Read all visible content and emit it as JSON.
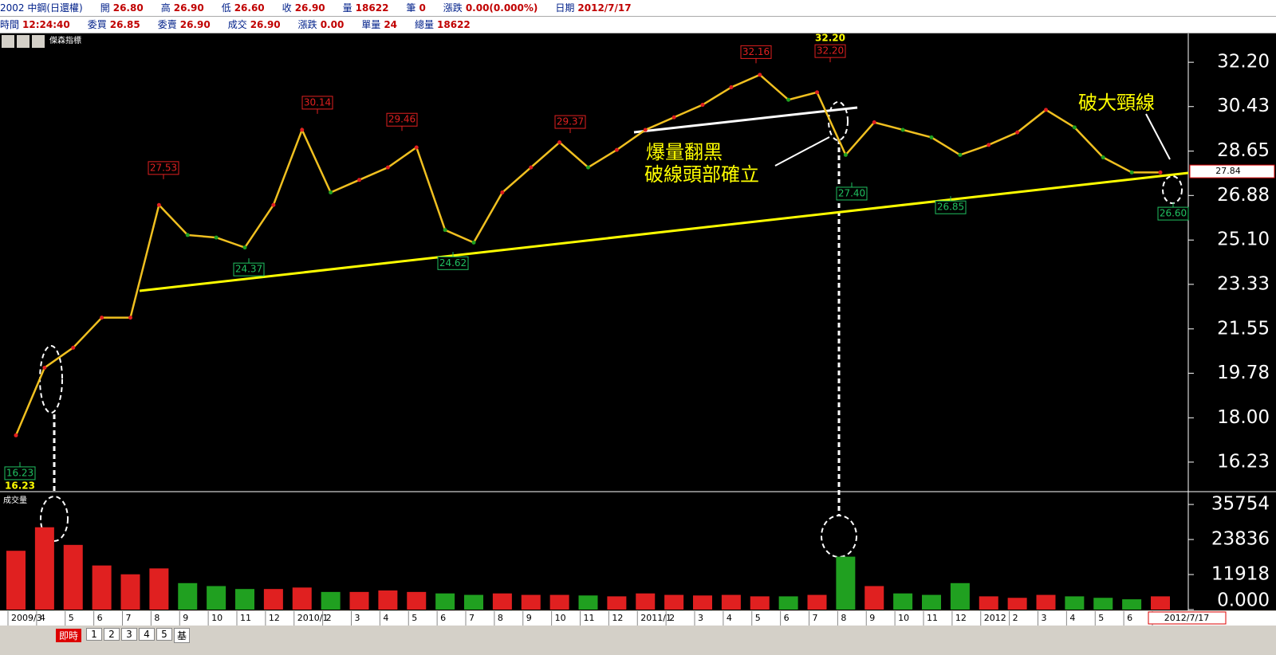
{
  "header": {
    "row1": [
      {
        "label": "2002 中鋼(日還權)",
        "value": ""
      },
      {
        "label": "開",
        "value": "26.80"
      },
      {
        "label": "高",
        "value": "26.90"
      },
      {
        "label": "低",
        "value": "26.60"
      },
      {
        "label": "收",
        "value": "26.90"
      },
      {
        "label": "量",
        "value": "18622"
      },
      {
        "label": "筆",
        "value": "0"
      },
      {
        "label": "漲跌",
        "value": "0.00(0.000%)"
      },
      {
        "label": "日期",
        "value": "2012/7/17"
      }
    ],
    "row2": [
      {
        "label": "時間",
        "value": "12:24:40"
      },
      {
        "label": "委買",
        "value": "26.85"
      },
      {
        "label": "委賣",
        "value": "26.90"
      },
      {
        "label": "成交",
        "value": "26.90"
      },
      {
        "label": "漲跌",
        "value": "0.00"
      },
      {
        "label": "單量",
        "value": "24"
      },
      {
        "label": "總量",
        "value": "18622"
      }
    ]
  },
  "chart_data": [
    {
      "type": "line",
      "title": "傑森指標",
      "color": "#f0c020",
      "up_color": "#e02020",
      "down_color": "#20a020",
      "categories": [
        "2009/3",
        "4",
        "5",
        "6",
        "7",
        "8",
        "9",
        "10",
        "11",
        "12",
        "2010/1",
        "2",
        "3",
        "4",
        "5",
        "6",
        "7",
        "8",
        "9",
        "10",
        "11",
        "12",
        "2011/1",
        "2",
        "3",
        "4",
        "5",
        "6",
        "7",
        "8",
        "9",
        "10",
        "11",
        "12",
        "2012",
        "2",
        "3",
        "4",
        "5",
        "6",
        "7"
      ],
      "values": [
        17.3,
        20,
        20.8,
        22,
        22,
        26.5,
        25.3,
        25.2,
        24.8,
        26.5,
        29.5,
        27,
        27.5,
        28,
        28.8,
        25.5,
        25,
        27,
        28,
        29,
        28,
        28.7,
        29.5,
        30,
        30.5,
        31.2,
        31.7,
        30.7,
        31,
        28.5,
        29.8,
        29.5,
        29.2,
        28.5,
        28.9,
        29.4,
        30.3,
        29.6,
        28.4,
        27.8,
        27.8
      ],
      "ylim": [
        15.05,
        33.35
      ],
      "yticks": [
        {
          "value": 32.2,
          "label": "32.20"
        },
        {
          "value": 30.43,
          "label": "30.43"
        },
        {
          "value": 28.65,
          "label": "28.65"
        },
        {
          "value": 26.88,
          "label": "26.88"
        },
        {
          "value": 25.1,
          "label": "25.10"
        },
        {
          "value": 23.33,
          "label": "23.33"
        },
        {
          "value": 21.55,
          "label": "21.55"
        },
        {
          "value": 19.78,
          "label": "19.78"
        },
        {
          "value": 18,
          "label": "18.00"
        },
        {
          "value": 16.23,
          "label": "16.23"
        }
      ],
      "last_price": {
        "value": 27.84,
        "label": "27.84"
      },
      "peak_labels": [
        {
          "value": 27.53,
          "label": "27.53"
        },
        {
          "value": 30.14,
          "label": "30.14"
        },
        {
          "value": 29.46,
          "label": "29.46"
        },
        {
          "value": 29.37,
          "label": "29.37"
        },
        {
          "value": 32.16,
          "label": "32.16"
        },
        {
          "value": 32.2,
          "label": "32.20"
        }
      ],
      "trough_labels": [
        {
          "value": 16.23,
          "label": "16.23"
        },
        {
          "value": 24.37,
          "label": "24.37"
        },
        {
          "value": 24.62,
          "label": "24.62"
        },
        {
          "value": 27.4,
          "label": "27.40"
        },
        {
          "value": 26.85,
          "label": "26.85"
        },
        {
          "value": 26.6,
          "label": "26.60"
        }
      ],
      "max_label": {
        "value": 32.2,
        "label": "32.20"
      },
      "min_label": {
        "value": 16.23,
        "label": "16.23"
      },
      "annotations": [
        "爆量翻黑",
        "破線頭部確立",
        "破大頸線"
      ]
    },
    {
      "type": "bar",
      "title": "成交量",
      "values": [
        20000,
        28000,
        22000,
        15000,
        12000,
        14000,
        9000,
        8000,
        7000,
        7000,
        7500,
        6000,
        6000,
        6500,
        6000,
        5500,
        5000,
        5500,
        5000,
        5000,
        4800,
        4500,
        5500,
        5000,
        4800,
        5000,
        4500,
        4500,
        5000,
        18000,
        8000,
        5500,
        5000,
        9000,
        4500,
        4000,
        5000,
        4500,
        4000,
        3500,
        4500
      ],
      "ylim": [
        0,
        39300
      ],
      "yticks": [
        35754,
        23836,
        11918,
        {
          "value": 0,
          "label": "0.000"
        }
      ]
    }
  ],
  "bottom": {
    "date": "2012/7/17",
    "live": "即時",
    "tabs": [
      "1",
      "2",
      "3",
      "4",
      "5",
      "基"
    ]
  }
}
